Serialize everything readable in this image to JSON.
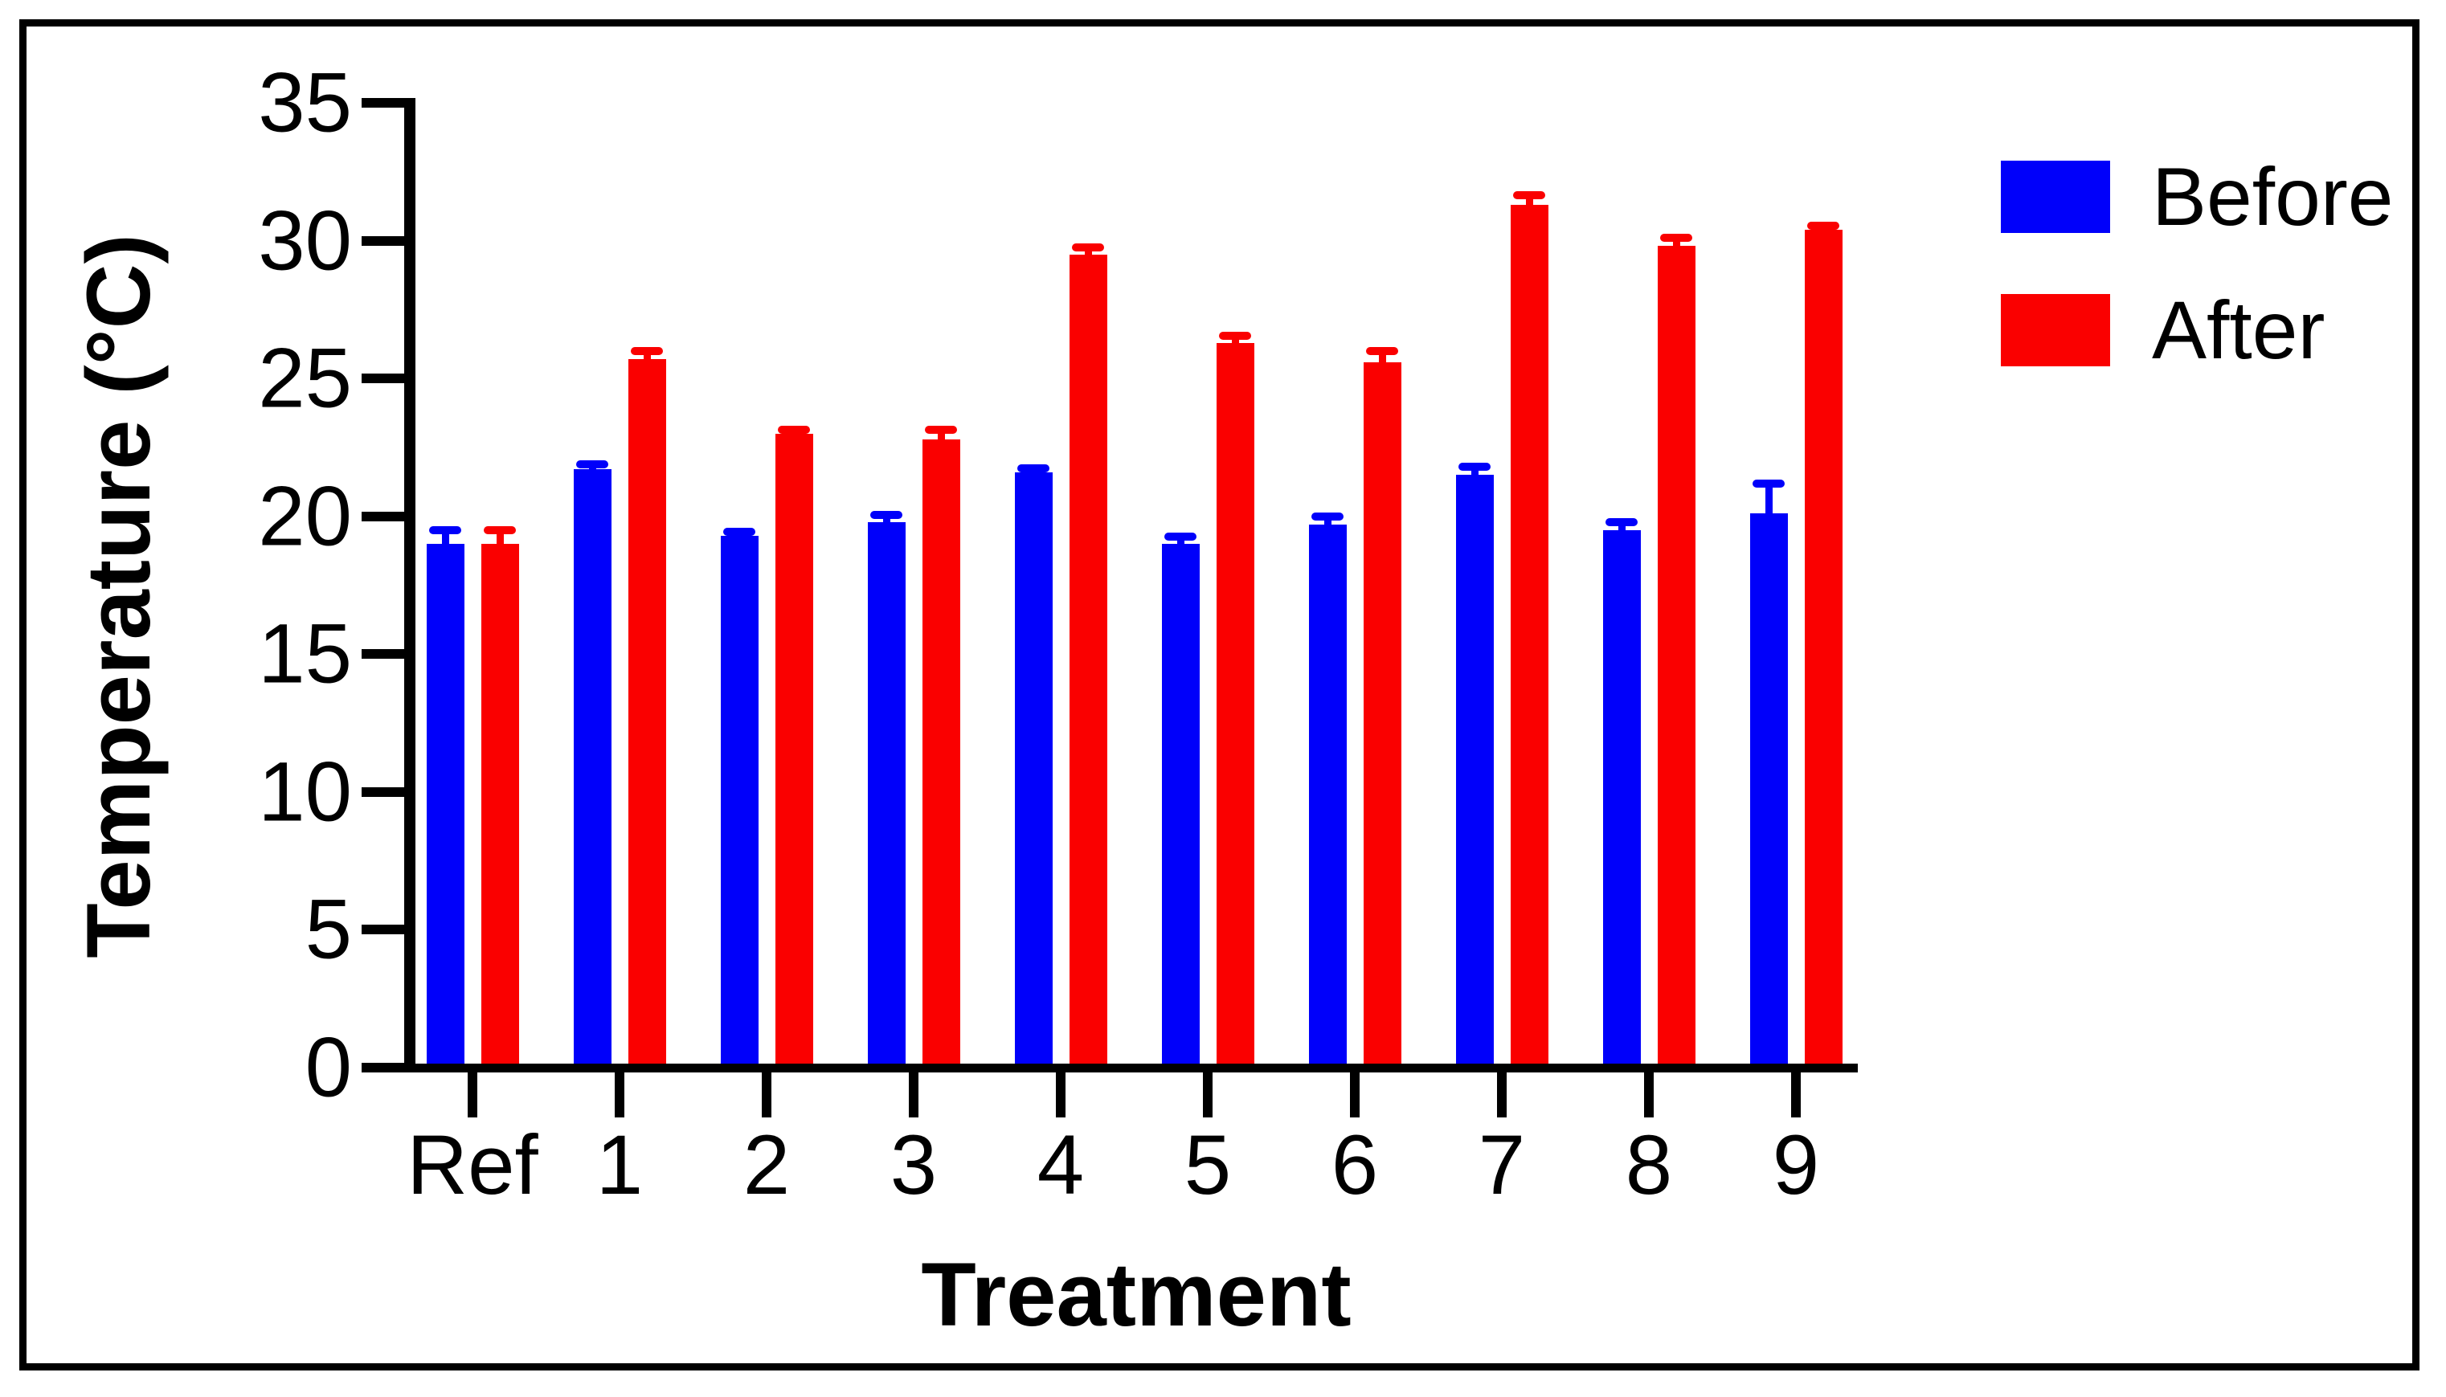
{
  "figure": {
    "background_color": "#ffffff",
    "border_color": "#000000"
  },
  "chart_data": {
    "type": "bar",
    "title": "",
    "xlabel": "Treatment",
    "ylabel": "Temperature (°C)",
    "categories": [
      "Ref",
      "1",
      "2",
      "3",
      "4",
      "5",
      "6",
      "7",
      "8",
      "9"
    ],
    "series": [
      {
        "name": "Before",
        "color": "#0000fa",
        "values": [
          19.0,
          21.7,
          19.3,
          19.8,
          21.6,
          19.0,
          19.7,
          21.5,
          19.5,
          20.1
        ],
        "sem": [
          0.5,
          0.2,
          0.15,
          0.25,
          0.15,
          0.25,
          0.3,
          0.3,
          0.3,
          1.1
        ]
      },
      {
        "name": "After",
        "color": "#fa0000",
        "values": [
          19.0,
          25.7,
          23.0,
          22.8,
          29.5,
          26.3,
          25.6,
          31.3,
          29.8,
          30.4
        ],
        "sem": [
          0.5,
          0.3,
          0.15,
          0.35,
          0.25,
          0.25,
          0.4,
          0.35,
          0.3,
          0.15
        ]
      }
    ],
    "ylim": [
      0,
      35
    ],
    "ytick_step": 5,
    "yticks": [
      0,
      5,
      10,
      15,
      20,
      25,
      30,
      35
    ],
    "error_bars": "upper whisker with cap (SEM)",
    "legend_position": "top-right",
    "grid": false,
    "axis_color": "#000000",
    "text_color": "#000000"
  }
}
